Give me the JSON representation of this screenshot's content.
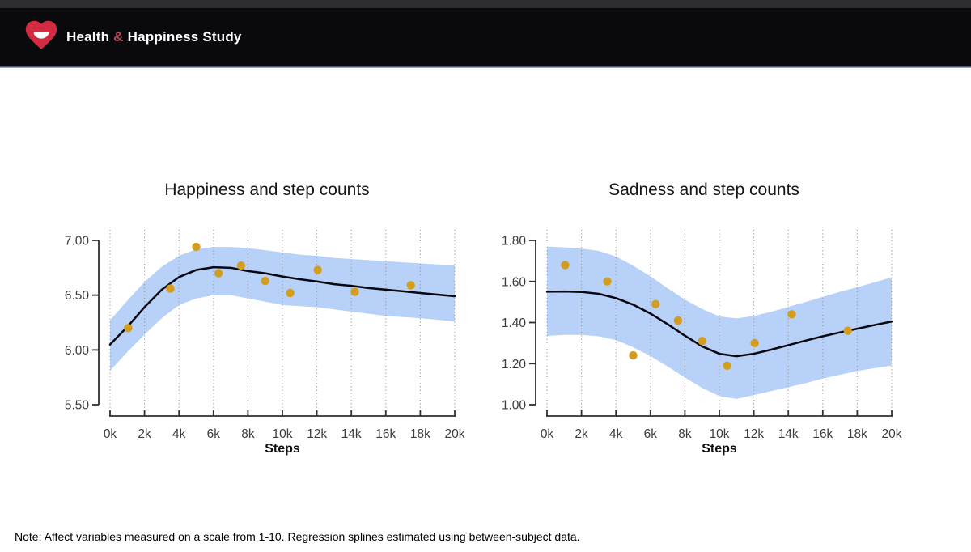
{
  "page": {
    "background": "#ffffff"
  },
  "header": {
    "title_health": "Health",
    "title_amp": "&",
    "title_rest": "Happiness Study",
    "bg_color": "#0a0a0d",
    "topstrip_color": "#2c2c31",
    "accent_color": "#d12c42"
  },
  "icons": {
    "logo": "heart-smile-icon"
  },
  "colors": {
    "band": "#b8d1f8",
    "line": "#07070f",
    "point": "#d39e1f",
    "grid": "#909090",
    "axis": "#2f2f2f",
    "tick_text": "#3c3c3c",
    "label_text": "#0f0f0f",
    "title_text": "#161616"
  },
  "note": {
    "text": "Note: Affect variables measured on a scale from 1-10. Regression splines estimated using between-subject data."
  },
  "chart_data": [
    {
      "type": "scatter",
      "title": "Happiness and step counts",
      "xlabel": "Steps",
      "x_unit": "steps (thousands)",
      "xlim": [
        0,
        20
      ],
      "ylim": [
        5.5,
        7.0
      ],
      "grid": "vertical-dotted",
      "legend": "none",
      "x_tick_values": [
        0,
        2,
        4,
        6,
        8,
        10,
        12,
        14,
        16,
        18,
        20
      ],
      "x_tick_labels": [
        "0k",
        "2k",
        "4k",
        "6k",
        "8k",
        "10k",
        "12k",
        "14k",
        "16k",
        "18k",
        "20k"
      ],
      "y_tick_values": [
        5.5,
        6.0,
        6.5,
        7.0
      ],
      "y_tick_labels": [
        "5.50",
        "6.00",
        "6.50",
        "7.00"
      ],
      "series": [
        {
          "name": "binned-mean-points",
          "type": "scatter",
          "x": [
            1.05,
            3.5,
            5.0,
            6.3,
            7.6,
            9.0,
            10.45,
            12.05,
            14.2,
            17.45
          ],
          "y": [
            6.2,
            6.56,
            6.94,
            6.7,
            6.77,
            6.63,
            6.52,
            6.73,
            6.53,
            6.59
          ]
        },
        {
          "name": "regression-spline",
          "type": "line",
          "x": [
            0,
            1,
            2,
            3,
            4,
            5,
            6,
            7,
            8,
            9,
            10,
            11,
            12,
            13,
            14,
            15,
            16,
            17,
            18,
            19,
            20
          ],
          "y": [
            6.05,
            6.21,
            6.39,
            6.55,
            6.665,
            6.73,
            6.755,
            6.75,
            6.72,
            6.7,
            6.67,
            6.645,
            6.625,
            6.6,
            6.585,
            6.565,
            6.55,
            6.535,
            6.52,
            6.505,
            6.49
          ]
        },
        {
          "name": "confidence-band",
          "type": "band",
          "x": [
            0,
            1,
            2,
            3,
            4,
            5,
            6,
            7,
            8,
            9,
            10,
            11,
            12,
            13,
            14,
            15,
            16,
            17,
            18,
            19,
            20
          ],
          "upper": [
            6.27,
            6.45,
            6.62,
            6.76,
            6.86,
            6.92,
            6.94,
            6.94,
            6.93,
            6.91,
            6.89,
            6.87,
            6.86,
            6.84,
            6.83,
            6.82,
            6.81,
            6.8,
            6.79,
            6.78,
            6.77
          ],
          "lower": [
            5.81,
            5.98,
            6.14,
            6.29,
            6.41,
            6.47,
            6.5,
            6.5,
            6.47,
            6.44,
            6.41,
            6.4,
            6.39,
            6.37,
            6.35,
            6.33,
            6.31,
            6.3,
            6.29,
            6.275,
            6.26
          ]
        }
      ]
    },
    {
      "type": "scatter",
      "title": "Sadness and step counts",
      "xlabel": "Steps",
      "x_unit": "steps (thousands)",
      "xlim": [
        0,
        20
      ],
      "ylim": [
        1.0,
        1.8
      ],
      "grid": "vertical-dotted",
      "legend": "none",
      "x_tick_values": [
        0,
        2,
        4,
        6,
        8,
        10,
        12,
        14,
        16,
        18,
        20
      ],
      "x_tick_labels": [
        "0k",
        "2k",
        "4k",
        "6k",
        "8k",
        "10k",
        "12k",
        "14k",
        "16k",
        "18k",
        "20k"
      ],
      "y_tick_values": [
        1.0,
        1.2,
        1.4,
        1.6,
        1.8
      ],
      "y_tick_labels": [
        "1.00",
        "1.20",
        "1.40",
        "1.60",
        "1.80"
      ],
      "series": [
        {
          "name": "binned-mean-points",
          "type": "scatter",
          "x": [
            1.05,
            3.5,
            5.0,
            6.3,
            7.6,
            9.0,
            10.45,
            12.05,
            14.2,
            17.45
          ],
          "y": [
            1.68,
            1.6,
            1.24,
            1.49,
            1.41,
            1.31,
            1.19,
            1.3,
            1.44,
            1.36
          ]
        },
        {
          "name": "regression-spline",
          "type": "line",
          "x": [
            0,
            1,
            2,
            3,
            4,
            5,
            6,
            7,
            8,
            9,
            10,
            11,
            12,
            13,
            14,
            15,
            16,
            17,
            18,
            19,
            20
          ],
          "y": [
            1.55,
            1.551,
            1.549,
            1.54,
            1.519,
            1.487,
            1.444,
            1.392,
            1.336,
            1.284,
            1.248,
            1.236,
            1.248,
            1.268,
            1.29,
            1.312,
            1.333,
            1.352,
            1.37,
            1.388,
            1.405
          ]
        },
        {
          "name": "confidence-band",
          "type": "band",
          "x": [
            0,
            1,
            2,
            3,
            4,
            5,
            6,
            7,
            8,
            9,
            10,
            11,
            12,
            13,
            14,
            15,
            16,
            17,
            18,
            19,
            20
          ],
          "upper": [
            1.77,
            1.766,
            1.76,
            1.749,
            1.722,
            1.677,
            1.625,
            1.567,
            1.512,
            1.466,
            1.43,
            1.42,
            1.432,
            1.452,
            1.476,
            1.5,
            1.525,
            1.55,
            1.572,
            1.596,
            1.62
          ],
          "lower": [
            1.335,
            1.34,
            1.34,
            1.333,
            1.315,
            1.28,
            1.237,
            1.186,
            1.132,
            1.082,
            1.042,
            1.028,
            1.047,
            1.066,
            1.085,
            1.105,
            1.127,
            1.146,
            1.164,
            1.178,
            1.19
          ]
        }
      ]
    }
  ]
}
